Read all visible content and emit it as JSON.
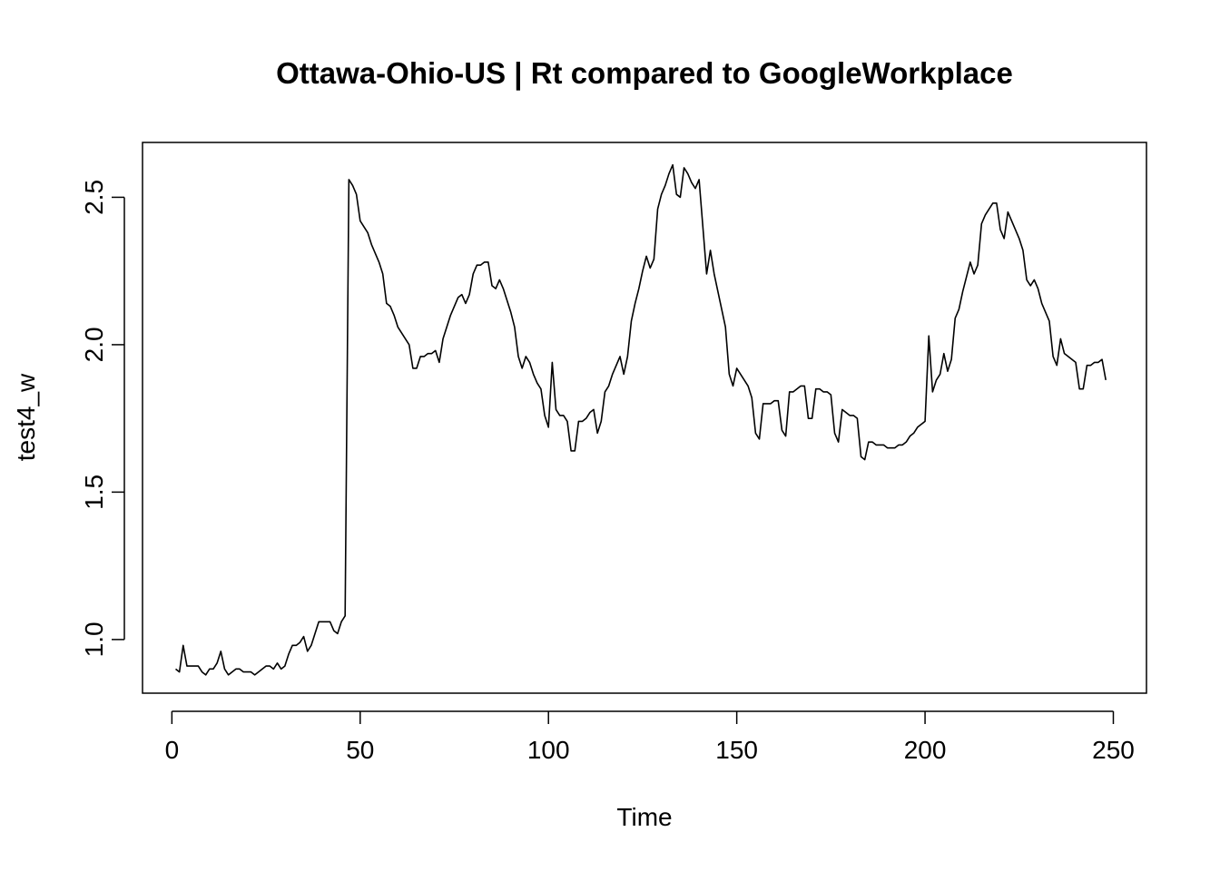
{
  "chart_data": {
    "type": "line",
    "title": "Ottawa-Ohio-US | Rt compared to GoogleWorkplace",
    "xlabel": "Time",
    "ylabel": "test4_w",
    "xlim": [
      -7.8,
      258.8
    ],
    "ylim": [
      0.818,
      2.686
    ],
    "x_ticks": [
      0,
      50,
      100,
      150,
      200,
      250
    ],
    "y_ticks": [
      1.0,
      1.5,
      2.0,
      2.5
    ],
    "x_tick_labels": [
      "0",
      "50",
      "100",
      "150",
      "200",
      "250"
    ],
    "y_tick_labels": [
      "1.0",
      "1.5",
      "2.0",
      "2.5"
    ],
    "grid": false,
    "legend": "none",
    "line_color": "#000000",
    "series": [
      {
        "x_start": 1,
        "values": [
          0.9,
          0.89,
          0.98,
          0.91,
          0.91,
          0.91,
          0.91,
          0.89,
          0.88,
          0.9,
          0.9,
          0.92,
          0.96,
          0.9,
          0.88,
          0.89,
          0.9,
          0.9,
          0.89,
          0.89,
          0.89,
          0.88,
          0.89,
          0.9,
          0.91,
          0.91,
          0.9,
          0.92,
          0.9,
          0.91,
          0.95,
          0.98,
          0.98,
          0.99,
          1.01,
          0.96,
          0.98,
          1.02,
          1.06,
          1.06,
          1.06,
          1.06,
          1.03,
          1.02,
          1.06,
          1.08,
          2.56,
          2.54,
          2.51,
          2.42,
          2.4,
          2.38,
          2.34,
          2.31,
          2.28,
          2.24,
          2.14,
          2.13,
          2.1,
          2.06,
          2.04,
          2.02,
          2.0,
          1.92,
          1.92,
          1.96,
          1.96,
          1.97,
          1.97,
          1.98,
          1.94,
          2.02,
          2.06,
          2.1,
          2.13,
          2.16,
          2.17,
          2.14,
          2.17,
          2.24,
          2.27,
          2.27,
          2.28,
          2.28,
          2.2,
          2.19,
          2.22,
          2.19,
          2.15,
          2.11,
          2.06,
          1.96,
          1.92,
          1.96,
          1.94,
          1.9,
          1.87,
          1.85,
          1.76,
          1.72,
          1.94,
          1.78,
          1.76,
          1.76,
          1.74,
          1.64,
          1.64,
          1.74,
          1.74,
          1.75,
          1.77,
          1.78,
          1.7,
          1.74,
          1.84,
          1.86,
          1.9,
          1.93,
          1.96,
          1.9,
          1.96,
          2.08,
          2.14,
          2.19,
          2.25,
          2.3,
          2.26,
          2.29,
          2.46,
          2.51,
          2.54,
          2.58,
          2.61,
          2.51,
          2.5,
          2.6,
          2.58,
          2.55,
          2.53,
          2.56,
          2.4,
          2.24,
          2.32,
          2.24,
          2.18,
          2.12,
          2.06,
          1.9,
          1.86,
          1.92,
          1.9,
          1.88,
          1.86,
          1.82,
          1.7,
          1.68,
          1.8,
          1.8,
          1.8,
          1.81,
          1.81,
          1.71,
          1.69,
          1.84,
          1.84,
          1.85,
          1.86,
          1.86,
          1.75,
          1.75,
          1.85,
          1.85,
          1.84,
          1.84,
          1.83,
          1.7,
          1.67,
          1.78,
          1.77,
          1.76,
          1.76,
          1.75,
          1.62,
          1.61,
          1.67,
          1.67,
          1.66,
          1.66,
          1.66,
          1.65,
          1.65,
          1.65,
          1.66,
          1.66,
          1.67,
          1.69,
          1.7,
          1.72,
          1.73,
          1.74,
          2.03,
          1.84,
          1.88,
          1.9,
          1.97,
          1.91,
          1.95,
          2.09,
          2.12,
          2.18,
          2.23,
          2.28,
          2.24,
          2.27,
          2.41,
          2.44,
          2.46,
          2.48,
          2.48,
          2.39,
          2.36,
          2.45,
          2.42,
          2.39,
          2.36,
          2.32,
          2.22,
          2.2,
          2.22,
          2.19,
          2.14,
          2.11,
          2.08,
          1.96,
          1.93,
          2.02,
          1.97,
          1.96,
          1.95,
          1.94,
          1.85,
          1.85,
          1.93,
          1.93,
          1.94,
          1.94,
          1.95,
          1.88
        ]
      }
    ]
  }
}
